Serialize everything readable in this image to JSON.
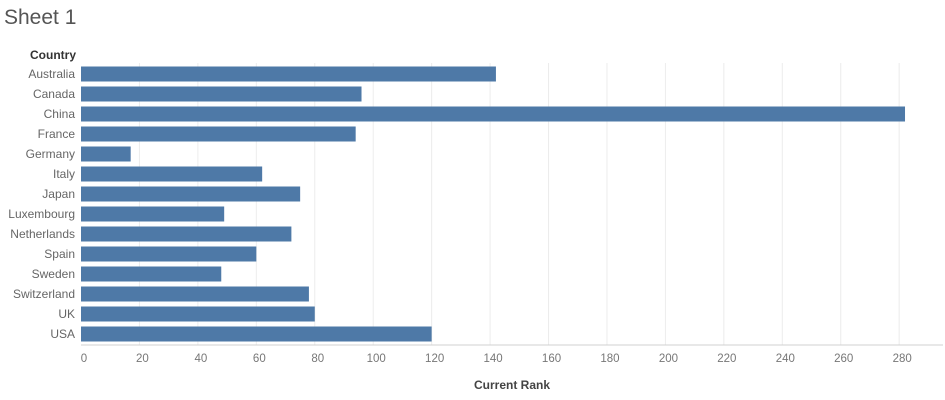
{
  "sheet": {
    "title": "Sheet 1"
  },
  "chart_data": {
    "type": "bar",
    "orientation": "horizontal",
    "row_header": "Country",
    "xlabel": "Current Rank",
    "categories": [
      "Australia",
      "Canada",
      "China",
      "France",
      "Germany",
      "Italy",
      "Japan",
      "Luxembourg",
      "Netherlands",
      "Spain",
      "Sweden",
      "Switzerland",
      "UK",
      "USA"
    ],
    "values": [
      142,
      96,
      282,
      94,
      17,
      62,
      75,
      49,
      72,
      60,
      48,
      78,
      80,
      120
    ],
    "xlim": [
      0,
      295
    ],
    "xticks": [
      0,
      20,
      40,
      60,
      80,
      100,
      120,
      140,
      160,
      180,
      200,
      220,
      240,
      260,
      280
    ],
    "grid": true,
    "bar_color": "#4e79a7"
  }
}
